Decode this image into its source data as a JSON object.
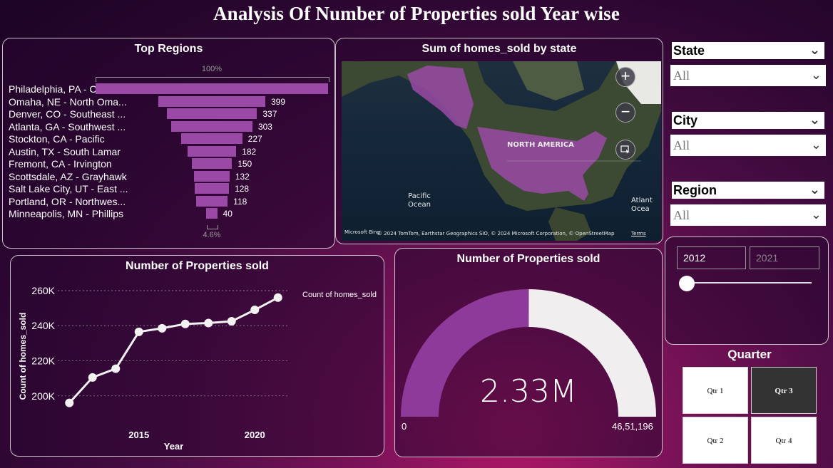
{
  "title": "Analysis Of Number of Properties sold Year wise",
  "top_regions": {
    "title": "Top Regions",
    "top_pct": "100%",
    "bottom_pct": "4.6%",
    "rows": [
      {
        "label": "Philadelphia, PA - Center...",
        "value": 867,
        "value_text": ""
      },
      {
        "label": "Omaha, NE - North Oma...",
        "value": 399,
        "value_text": "399"
      },
      {
        "label": "Denver, CO - Southeast ...",
        "value": 337,
        "value_text": "337"
      },
      {
        "label": "Atlanta, GA - Southwest ...",
        "value": 303,
        "value_text": "303"
      },
      {
        "label": "Stockton, CA - Pacific",
        "value": 227,
        "value_text": "227"
      },
      {
        "label": "Austin, TX - South Lamar",
        "value": 182,
        "value_text": "182"
      },
      {
        "label": "Fremont, CA - Irvington",
        "value": 150,
        "value_text": "150"
      },
      {
        "label": "Scottsdale, AZ - Grayhawk",
        "value": 132,
        "value_text": "132"
      },
      {
        "label": "Salt Lake City, UT - East ...",
        "value": 128,
        "value_text": "128"
      },
      {
        "label": "Portland, OR - Northwes...",
        "value": 118,
        "value_text": "118"
      },
      {
        "label": "Minneapolis, MN - Phillips",
        "value": 40,
        "value_text": "40"
      }
    ]
  },
  "map": {
    "title": "Sum of homes_sold by state",
    "continent_label": "NORTH AMERICA",
    "ocean_pacific": "Pacific Ocean",
    "ocean_atlantic": "Atlant Ocea",
    "attribution": "© 2024 TomTom, Earthstar Geographics SIO, © 2024 Microsoft Corporation, © OpenStreetMap",
    "terms": "Terms",
    "brand": "Microsoft Bing",
    "zoom_in": "+",
    "zoom_out": "−"
  },
  "filters": {
    "state": {
      "label": "State",
      "value": "All"
    },
    "city": {
      "label": "City",
      "value": "All"
    },
    "region": {
      "label": "Region",
      "value": "All"
    }
  },
  "year_slider": {
    "start": "2012",
    "end": "2021"
  },
  "quarter": {
    "title": "Quarter",
    "items": [
      "Qtr 1",
      "Qtr 3",
      "Qtr 2",
      "Qtr 4"
    ],
    "selected": "Qtr 3"
  },
  "line_panel": {
    "title": "Number of Properties sold"
  },
  "gauge": {
    "title": "Number of Properties sold",
    "value_text": "2.33M",
    "min_text": "0",
    "max_text": "46,51,196",
    "value": 2330000,
    "max": 4651196,
    "colors": {
      "fill": "#8e3a9a",
      "track": "#f0eeee"
    }
  },
  "chart_data": {
    "type": "line",
    "title": "",
    "xlabel": "Year",
    "ylabel": "Count of homes_sold",
    "legend": "Count of homes_sold",
    "legend_position": "top-right",
    "x": [
      2012,
      2013,
      2014,
      2015,
      2016,
      2017,
      2018,
      2019,
      2020,
      2021
    ],
    "series": [
      {
        "name": "Count of homes_sold",
        "values": [
          196000,
          210500,
          215500,
          236500,
          238500,
          241000,
          241500,
          242500,
          249000,
          256000
        ]
      }
    ],
    "xticks": [
      "2015",
      "2020"
    ],
    "yticks": [
      "200K",
      "220K",
      "240K",
      "260K"
    ],
    "xlim": [
      2011.5,
      2021.5
    ],
    "ylim": [
      193000,
      262000
    ],
    "grid": true
  }
}
